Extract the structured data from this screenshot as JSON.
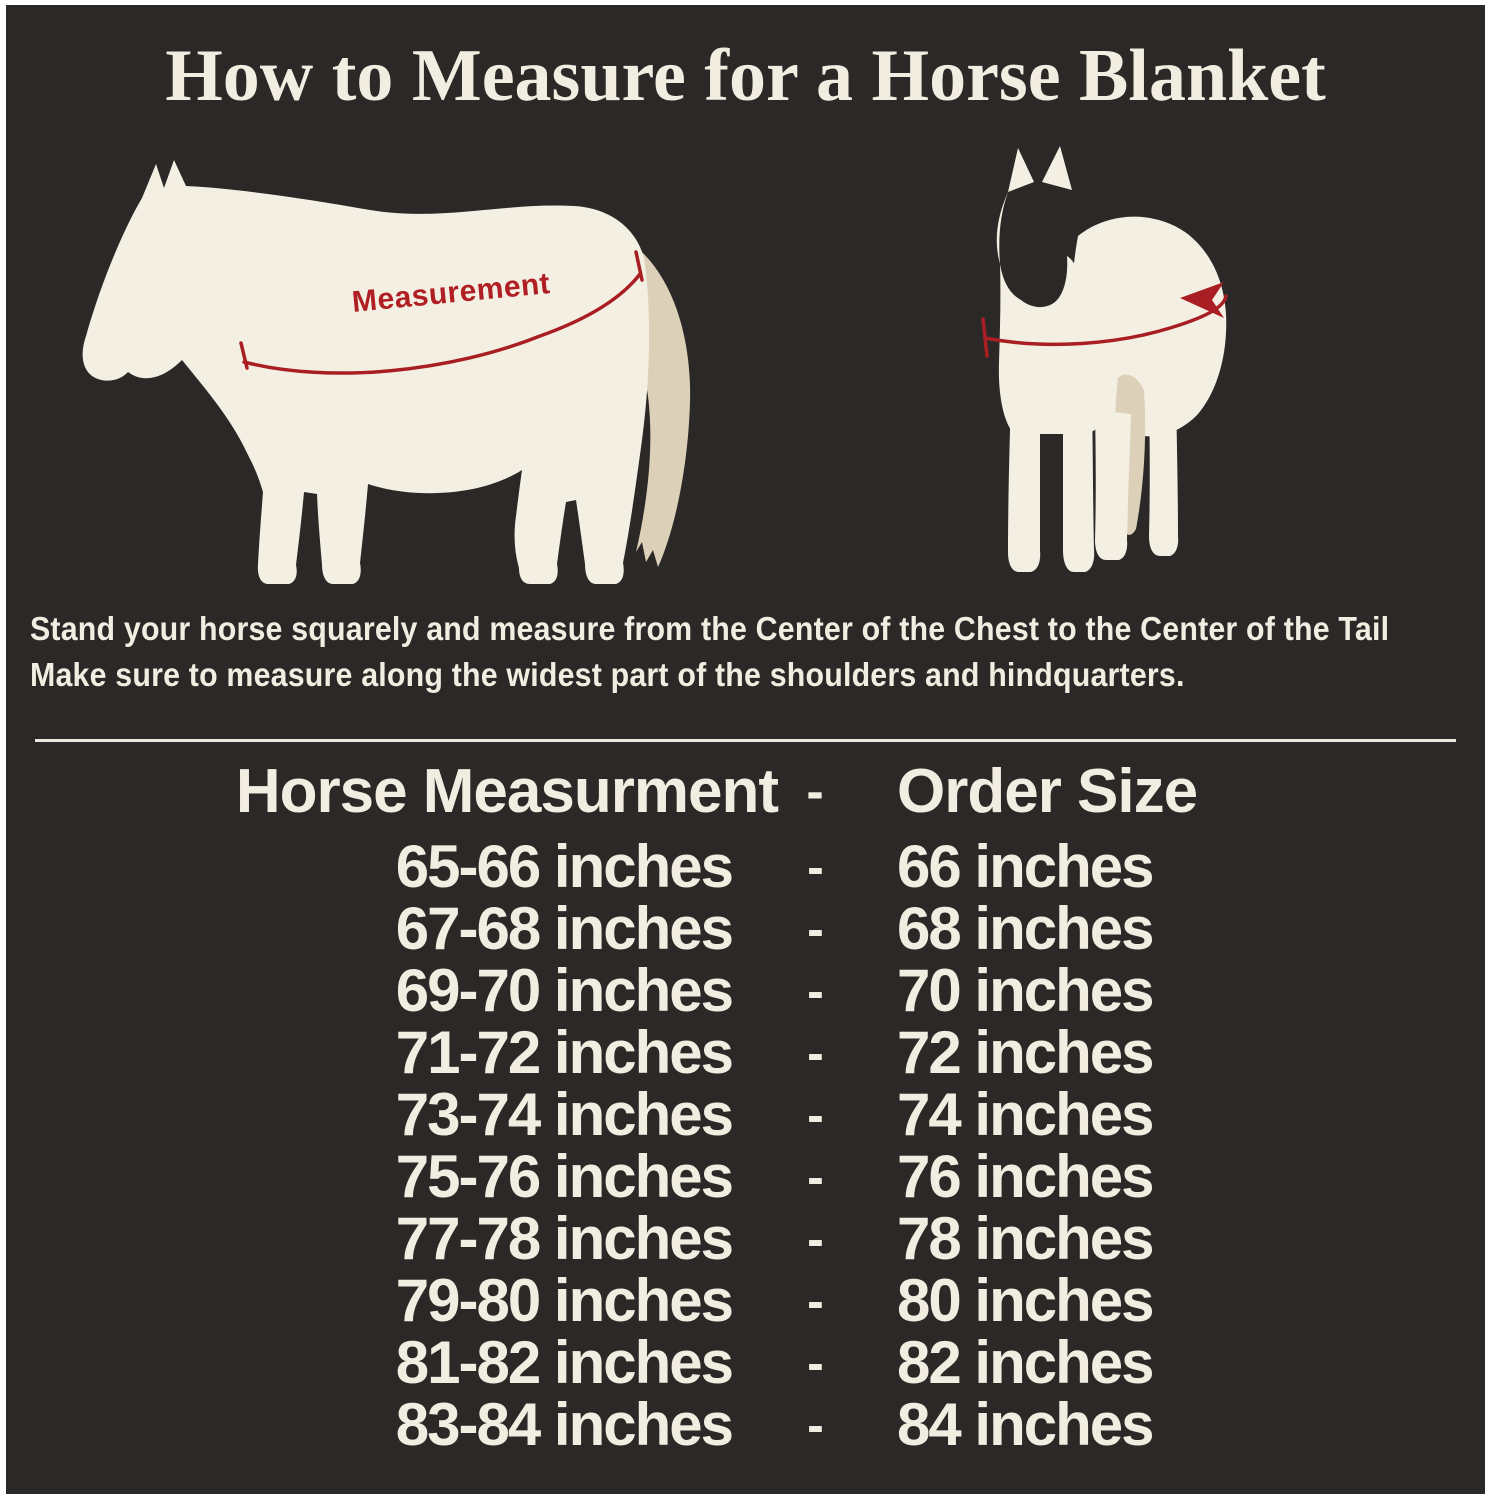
{
  "page": {
    "title": "How to Measure for a Horse Blanket",
    "colors": {
      "background": "#2b2927",
      "frame_border": "#ffffff",
      "cream_text": "#f2ede1",
      "horse_body": "#f4efe3",
      "horse_tail_tan": "#dcd0b8",
      "measure_red": "#a81e22",
      "label_red": "#b01f23",
      "divider": "#ece8de"
    }
  },
  "diagram": {
    "measurement_label": "Measurement",
    "side_horse": "side-view horse silhouette with girth measurement line",
    "front_horse": "front-view horse silhouette with wrap-around measurement arrow"
  },
  "description": {
    "line1": "Stand your horse squarely and measure from the Center of the Chest to the Center of the Tail",
    "line2": "Make sure to measure along the widest part of the shoulders and hindquarters."
  },
  "size_chart": {
    "header": {
      "measurement": "Horse Measurment",
      "separator": "-",
      "order": "Order Size"
    },
    "rows": [
      {
        "range": "65-66 inches",
        "sep": "-",
        "size": "66 inches"
      },
      {
        "range": "67-68 inches",
        "sep": "-",
        "size": "68 inches"
      },
      {
        "range": "69-70 inches",
        "sep": "-",
        "size": "70 inches"
      },
      {
        "range": "71-72 inches",
        "sep": "-",
        "size": "72 inches"
      },
      {
        "range": "73-74 inches",
        "sep": "-",
        "size": "74 inches"
      },
      {
        "range": "75-76 inches",
        "sep": "-",
        "size": "76 inches"
      },
      {
        "range": "77-78 inches",
        "sep": "-",
        "size": "78 inches"
      },
      {
        "range": "79-80 inches",
        "sep": "-",
        "size": "80 inches"
      },
      {
        "range": "81-82 inches",
        "sep": "-",
        "size": "82 inches"
      },
      {
        "range": "83-84 inches",
        "sep": "-",
        "size": "84 inches"
      }
    ]
  }
}
